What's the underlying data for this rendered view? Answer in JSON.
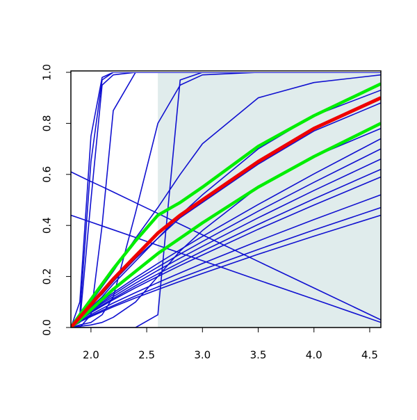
{
  "chart_data": {
    "type": "line",
    "x": [
      1.82,
      1.9,
      2.0,
      2.1,
      2.2,
      2.4,
      2.6,
      2.8,
      3.0,
      3.5,
      4.0,
      4.6
    ],
    "xlim": [
      1.82,
      4.6
    ],
    "ylim": [
      0,
      1
    ],
    "xticks": [
      {
        "value": 2.0,
        "label": "2.0"
      },
      {
        "value": 2.5,
        "label": "2.5"
      },
      {
        "value": 3.0,
        "label": "3.0"
      },
      {
        "value": 3.5,
        "label": "3.5"
      },
      {
        "value": 4.0,
        "label": "4.0"
      },
      {
        "value": 4.5,
        "label": "4.5"
      }
    ],
    "yticks": [
      {
        "value": 0,
        "label": "0.0"
      },
      {
        "value": 0.2,
        "label": "0.2"
      },
      {
        "value": 0.4,
        "label": "0.4"
      },
      {
        "value": 0.6,
        "label": "0.6"
      },
      {
        "value": 0.8,
        "label": "0.8"
      },
      {
        "value": 1,
        "label": "1.0"
      }
    ],
    "shade": {
      "x": [
        2.6,
        4.6
      ],
      "color": "#e0ecec"
    },
    "series": [
      {
        "color": "#1010d0",
        "width": 1.6,
        "values": [
          0,
          0.02,
          0.5,
          0.95,
          0.99,
          1,
          1,
          1,
          1,
          1,
          1,
          1
        ]
      },
      {
        "color": "#1010d0",
        "width": 1.6,
        "values": [
          0,
          0.05,
          0.65,
          0.97,
          1,
          1,
          1,
          1,
          1,
          1,
          1,
          1
        ]
      },
      {
        "color": "#1010d0",
        "width": 1.6,
        "values": [
          0,
          0.1,
          0.75,
          0.98,
          1,
          1,
          1,
          1,
          1,
          1,
          1,
          1
        ]
      },
      {
        "color": "#1010d0",
        "width": 1.6,
        "values": [
          0,
          0,
          0.05,
          0.4,
          0.85,
          1,
          1,
          1,
          1,
          1,
          1,
          1
        ]
      },
      {
        "color": "#1010d0",
        "width": 1.6,
        "values": [
          0,
          0,
          0,
          0,
          0,
          0,
          0.05,
          0.97,
          1,
          1,
          1,
          1
        ]
      },
      {
        "color": "#1010d0",
        "width": 1.6,
        "values": [
          0,
          0.01,
          0.02,
          0.05,
          0.12,
          0.45,
          0.8,
          0.95,
          0.99,
          1,
          1,
          1
        ]
      },
      {
        "color": "#1010d0",
        "width": 1.6,
        "values": [
          0,
          0.04,
          0.1,
          0.16,
          0.22,
          0.35,
          0.47,
          0.6,
          0.72,
          0.9,
          0.96,
          0.99
        ]
      },
      {
        "color": "#1010d0",
        "width": 1.6,
        "values": [
          0,
          0.03,
          0.08,
          0.12,
          0.17,
          0.26,
          0.35,
          0.44,
          0.52,
          0.7,
          0.83,
          0.93
        ]
      },
      {
        "color": "#1010d0",
        "width": 1.6,
        "values": [
          0,
          0.04,
          0.09,
          0.13,
          0.18,
          0.27,
          0.35,
          0.43,
          0.49,
          0.64,
          0.77,
          0.88
        ]
      },
      {
        "color": "#1010d0",
        "width": 1.6,
        "values": [
          0,
          0.036,
          0.073,
          0.105,
          0.136,
          0.195,
          0.251,
          0.305,
          0.357,
          0.482,
          0.602,
          0.74
        ]
      },
      {
        "color": "#1010d0",
        "width": 1.6,
        "values": [
          0,
          0.034,
          0.069,
          0.099,
          0.129,
          0.185,
          0.237,
          0.288,
          0.337,
          0.456,
          0.569,
          0.7
        ]
      },
      {
        "color": "#1010d0",
        "width": 1.6,
        "values": [
          0,
          0.032,
          0.065,
          0.094,
          0.121,
          0.174,
          0.224,
          0.272,
          0.318,
          0.43,
          0.537,
          0.66
        ]
      },
      {
        "color": "#1010d0",
        "width": 1.6,
        "values": [
          0,
          0.03,
          0.061,
          0.088,
          0.114,
          0.164,
          0.21,
          0.255,
          0.299,
          0.404,
          0.504,
          0.62
        ]
      },
      {
        "color": "#1010d0",
        "width": 1.6,
        "values": [
          0,
          0.029,
          0.058,
          0.084,
          0.109,
          0.156,
          0.2,
          0.243,
          0.284,
          0.385,
          0.48,
          0.59
        ]
      },
      {
        "color": "#1010d0",
        "width": 1.6,
        "values": [
          0,
          0.025,
          0.051,
          0.074,
          0.096,
          0.137,
          0.176,
          0.214,
          0.251,
          0.339,
          0.423,
          0.52
        ]
      },
      {
        "color": "#1010d0",
        "width": 1.6,
        "values": [
          0,
          0.023,
          0.046,
          0.067,
          0.086,
          0.124,
          0.159,
          0.194,
          0.227,
          0.306,
          0.382,
          0.47
        ]
      },
      {
        "color": "#1010d0",
        "width": 1.6,
        "values": [
          0,
          0.022,
          0.043,
          0.062,
          0.081,
          0.116,
          0.149,
          0.181,
          0.212,
          0.287,
          0.358,
          0.44
        ]
      },
      {
        "color": "#1010d0",
        "width": 1.6,
        "values": [
          0,
          0.005,
          0.01,
          0.02,
          0.04,
          0.1,
          0.2,
          0.3,
          0.38,
          0.55,
          0.67,
          0.78
        ]
      },
      {
        "color": "#1010d0",
        "width": 1.6,
        "values": [
          0.61,
          0.593,
          0.572,
          0.552,
          0.531,
          0.489,
          0.447,
          0.405,
          0.363,
          0.259,
          0.155,
          0.03
        ]
      },
      {
        "color": "#1010d0",
        "width": 1.6,
        "values": [
          0.44,
          0.428,
          0.413,
          0.398,
          0.383,
          0.353,
          0.322,
          0.292,
          0.262,
          0.186,
          0.111,
          0.02
        ]
      },
      {
        "color": "#00ee00",
        "width": 4.5,
        "values": [
          0,
          0.05,
          0.11,
          0.17,
          0.23,
          0.34,
          0.44,
          0.49,
          0.55,
          0.71,
          0.83,
          0.955
        ]
      },
      {
        "color": "#00ee00",
        "width": 4.5,
        "values": [
          0,
          0.03,
          0.07,
          0.11,
          0.15,
          0.22,
          0.29,
          0.35,
          0.41,
          0.55,
          0.67,
          0.8
        ]
      },
      {
        "color": "#ee0000",
        "width": 5,
        "values": [
          0,
          0.04,
          0.09,
          0.14,
          0.19,
          0.28,
          0.37,
          0.44,
          0.5,
          0.65,
          0.78,
          0.9
        ]
      }
    ]
  }
}
